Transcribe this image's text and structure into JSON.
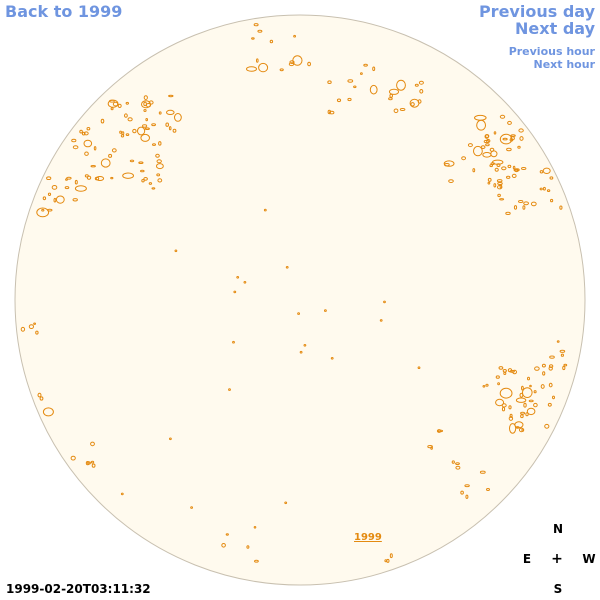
{
  "nav": {
    "back_label": "Back to 1999",
    "previous_day_label": "Previous day",
    "next_day_label": "Next day",
    "previous_hour_label": "Previous hour",
    "next_hour_label": "Next hour"
  },
  "timestamp": "1999-02-20T03:11:32",
  "year_marker": "1999",
  "compass": {
    "north": "N",
    "east": "E",
    "center": "+",
    "west": "W",
    "south": "S"
  },
  "colors": {
    "link": "#6f95e0",
    "disk_fill": "#fffaee",
    "disk_stroke": "#c8c0b0",
    "contour": "#e48a10"
  },
  "icons": {
    "disk": "solar-disk-icon",
    "compass": "compass-cross-icon"
  }
}
